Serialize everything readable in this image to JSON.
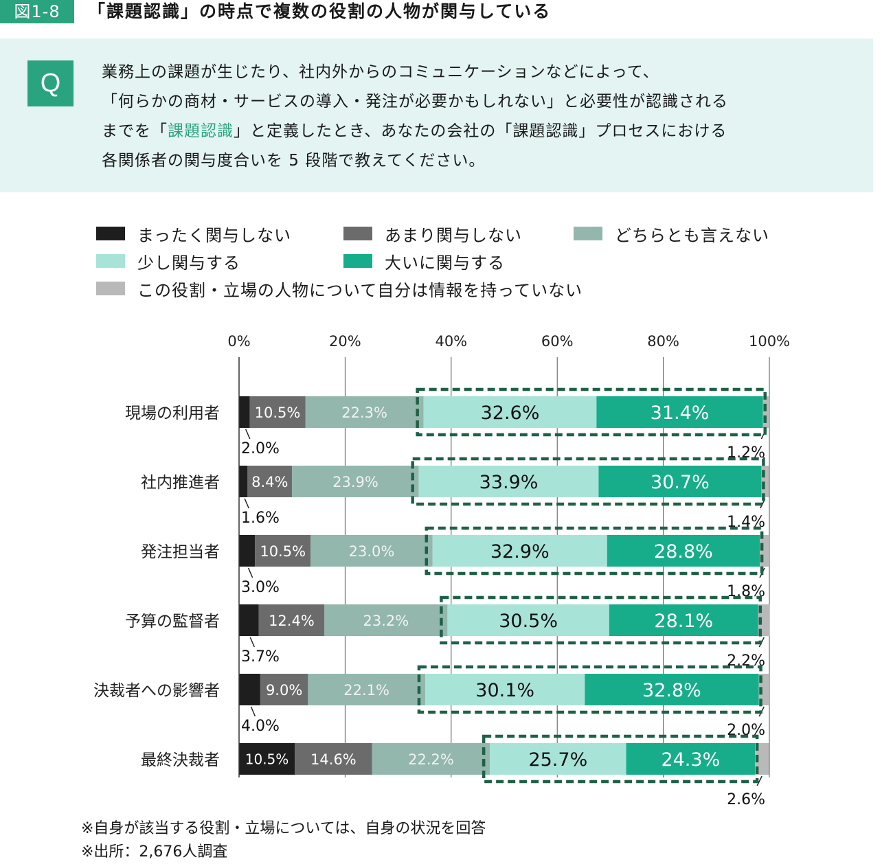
{
  "header": {
    "figure_label": "図1-8",
    "title": "「課題認識」の時点で複数の役割の人物が関与している"
  },
  "question": {
    "badge": "Q",
    "line1": "業務上の課題が生じたり、社内外からのコミュニケーションなどによって、",
    "line2": "「何らかの商材・サービスの導入・発注が必要かもしれない」と必要性が認識される",
    "line3_before": "までを「",
    "line3_highlight": "課題認識",
    "line3_after": "」と定義したとき、あなたの会社の「課題認識」プロセスにおける",
    "line4": "各関係者の関与度合いを 5 段階で教えてください。",
    "highlight_color": "#2aa37f"
  },
  "footnotes": [
    "※自身が該当する役割・立場については、自身の状況を回答",
    "※出所：2,676人調査"
  ],
  "chart_data": {
    "type": "bar",
    "orientation": "horizontal",
    "stacked": true,
    "categories": [
      "現場の利用者",
      "社内推進者",
      "発注担当者",
      "予算の監督者",
      "決裁者への影響者",
      "最終決裁者"
    ],
    "series": [
      {
        "name": "まったく関与しない",
        "color": "#1e1e1e",
        "values": [
          2.0,
          1.6,
          3.0,
          3.7,
          4.0,
          10.5
        ]
      },
      {
        "name": "あまり関与しない",
        "color": "#6b6b6b",
        "values": [
          10.5,
          8.4,
          10.5,
          12.4,
          9.0,
          14.6
        ]
      },
      {
        "name": "どちらとも言えない",
        "color": "#93b7ad",
        "values": [
          22.3,
          23.9,
          23.0,
          23.2,
          22.1,
          22.2
        ]
      },
      {
        "name": "少し関与する",
        "color": "#a8e3d8",
        "values": [
          32.6,
          33.9,
          32.9,
          30.5,
          30.1,
          25.7
        ]
      },
      {
        "name": "大いに関与する",
        "color": "#17ad8a",
        "values": [
          31.4,
          30.7,
          28.8,
          28.1,
          32.8,
          24.3
        ]
      },
      {
        "name": "この役割・立場の人物について自分は情報を持っていない",
        "color": "#b9b9b9",
        "values": [
          1.2,
          1.4,
          1.8,
          2.2,
          2.0,
          2.6
        ]
      }
    ],
    "x_ticks": [
      "0%",
      "20%",
      "40%",
      "60%",
      "80%",
      "100%"
    ],
    "xlim": [
      0,
      100
    ],
    "grid": true,
    "legend_position": "top",
    "highlight": {
      "series": [
        "少し関与する",
        "大いに関与する"
      ],
      "color": "#1f6147",
      "style": "dashed"
    }
  }
}
